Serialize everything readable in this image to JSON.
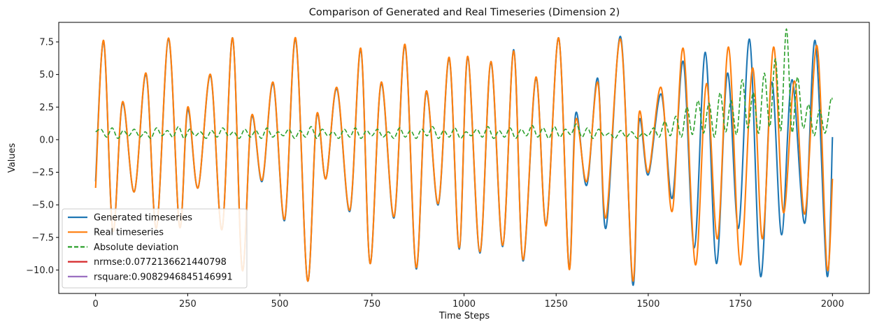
{
  "chart_data": {
    "type": "line",
    "title": "Comparison of Generated and Real Timeseries (Dimension 2)",
    "xlabel": "Time Steps",
    "ylabel": "Values",
    "xlim": [
      -100,
      2100
    ],
    "ylim": [
      -11.8,
      9.0
    ],
    "xticks": [
      0,
      250,
      500,
      750,
      1000,
      1250,
      1500,
      1750,
      2000
    ],
    "yticks": [
      -10.0,
      -7.5,
      -5.0,
      -2.5,
      0.0,
      2.5,
      5.0,
      7.5
    ],
    "xtick_labels": [
      "0",
      "250",
      "500",
      "750",
      "1000",
      "1250",
      "1500",
      "1750",
      "2000"
    ],
    "ytick_labels": [
      "−10.0",
      "−7.5",
      "−5.0",
      "−2.5",
      "0.0",
      "2.5",
      "5.0",
      "7.5"
    ],
    "grid": false,
    "legend_position": "lower-left",
    "series": [
      {
        "name": "Generated timeseries",
        "color": "#1f77b4",
        "style": "solid",
        "x": [
          0,
          22,
          47,
          73,
          105,
          137,
          165,
          198,
          228,
          250,
          278,
          312,
          343,
          372,
          398,
          423,
          452,
          482,
          513,
          543,
          575,
          600,
          625,
          655,
          690,
          720,
          745,
          775,
          810,
          840,
          870,
          897,
          930,
          960,
          987,
          1010,
          1043,
          1073,
          1105,
          1135,
          1160,
          1195,
          1223,
          1257,
          1285,
          1303,
          1333,
          1363,
          1385,
          1425,
          1458,
          1475,
          1500,
          1535,
          1565,
          1595,
          1625,
          1655,
          1685,
          1715,
          1745,
          1775,
          1805,
          1835,
          1862,
          1890,
          1925,
          1953,
          1985,
          2000
        ],
        "y": [
          -3.2,
          7.5,
          -7.0,
          2.8,
          -4.0,
          5.0,
          -6.8,
          7.7,
          -6.7,
          2.3,
          -3.7,
          4.9,
          -6.9,
          7.8,
          -10.0,
          1.7,
          -3.2,
          4.3,
          -6.2,
          7.7,
          -10.8,
          1.8,
          -3.0,
          3.9,
          -5.5,
          6.9,
          -9.5,
          4.3,
          -6.0,
          7.2,
          -9.9,
          3.6,
          -5.0,
          6.2,
          -8.4,
          6.3,
          -8.7,
          5.9,
          -8.2,
          6.9,
          -9.3,
          4.7,
          -6.5,
          7.8,
          -9.8,
          2.0,
          -3.5,
          4.7,
          -6.8,
          7.9,
          -11.1,
          1.4,
          -2.7,
          3.5,
          -4.5,
          6.0,
          -8.3,
          6.7,
          -9.5,
          5.1,
          -6.8,
          7.7,
          -10.5,
          4.4,
          -7.3,
          4.6,
          -6.4,
          7.6,
          -10.4,
          0.2
        ]
      },
      {
        "name": "Real timeseries",
        "color": "#ff7f0e",
        "style": "solid",
        "x": [
          0,
          22,
          47,
          73,
          105,
          137,
          165,
          198,
          228,
          250,
          278,
          312,
          343,
          372,
          398,
          423,
          452,
          482,
          513,
          543,
          575,
          600,
          625,
          655,
          690,
          720,
          745,
          775,
          810,
          840,
          870,
          897,
          930,
          960,
          987,
          1010,
          1043,
          1073,
          1105,
          1135,
          1160,
          1195,
          1223,
          1257,
          1285,
          1303,
          1333,
          1363,
          1385,
          1425,
          1458,
          1475,
          1500,
          1535,
          1565,
          1595,
          1628,
          1658,
          1688,
          1718,
          1750,
          1783,
          1810,
          1840,
          1867,
          1897,
          1925,
          1958,
          1985,
          2000
        ],
        "y": [
          -3.7,
          7.6,
          -7.0,
          2.9,
          -4.0,
          5.1,
          -6.8,
          7.8,
          -6.7,
          2.5,
          -3.7,
          5.0,
          -6.9,
          7.8,
          -10.0,
          1.8,
          -3.1,
          4.4,
          -6.1,
          7.8,
          -10.8,
          1.9,
          -3.0,
          4.0,
          -5.4,
          7.0,
          -9.5,
          4.4,
          -5.9,
          7.3,
          -9.8,
          3.7,
          -4.9,
          6.3,
          -8.3,
          6.4,
          -8.6,
          6.0,
          -8.1,
          6.8,
          -9.2,
          4.8,
          -6.6,
          7.8,
          -9.9,
          1.5,
          -3.2,
          4.4,
          -6.0,
          7.7,
          -10.8,
          2.0,
          -2.5,
          4.0,
          -5.5,
          7.0,
          -9.6,
          4.3,
          -7.6,
          7.1,
          -9.6,
          5.5,
          -7.6,
          7.1,
          -5.6,
          4.5,
          -5.7,
          7.2,
          -9.8,
          -3.0
        ]
      },
      {
        "name": "Absolute deviation",
        "color": "#2ca02c",
        "style": "dashed",
        "x": [
          0,
          15,
          30,
          45,
          60,
          75,
          90,
          105,
          120,
          135,
          150,
          165,
          180,
          195,
          210,
          225,
          240,
          255,
          270,
          285,
          300,
          315,
          330,
          345,
          360,
          375,
          390,
          405,
          420,
          435,
          450,
          465,
          480,
          495,
          510,
          525,
          540,
          555,
          570,
          585,
          600,
          615,
          630,
          645,
          660,
          675,
          690,
          705,
          720,
          735,
          750,
          765,
          780,
          795,
          810,
          825,
          840,
          855,
          870,
          885,
          900,
          915,
          930,
          945,
          960,
          975,
          990,
          1005,
          1020,
          1035,
          1050,
          1065,
          1080,
          1095,
          1110,
          1125,
          1140,
          1155,
          1170,
          1185,
          1200,
          1215,
          1230,
          1245,
          1260,
          1275,
          1290,
          1305,
          1320,
          1335,
          1350,
          1365,
          1380,
          1395,
          1410,
          1425,
          1440,
          1455,
          1470,
          1485,
          1500,
          1515,
          1530,
          1545,
          1560,
          1575,
          1590,
          1605,
          1620,
          1635,
          1650,
          1665,
          1680,
          1695,
          1710,
          1725,
          1740,
          1755,
          1770,
          1785,
          1800,
          1815,
          1830,
          1845,
          1860,
          1875,
          1890,
          1905,
          1920,
          1935,
          1950,
          1965,
          1980,
          1995,
          2000
        ],
        "y": [
          0.6,
          0.8,
          0.2,
          0.9,
          0.1,
          0.7,
          0.3,
          0.8,
          0.2,
          0.6,
          0.1,
          0.9,
          0.3,
          0.7,
          0.2,
          1.0,
          0.1,
          0.8,
          0.3,
          0.6,
          0.1,
          0.7,
          0.2,
          0.9,
          0.3,
          0.6,
          0.1,
          0.8,
          0.2,
          0.7,
          0.1,
          0.9,
          0.2,
          0.6,
          0.3,
          0.8,
          0.1,
          0.7,
          0.2,
          1.0,
          0.1,
          0.8,
          0.3,
          0.6,
          0.1,
          0.8,
          0.2,
          0.9,
          0.1,
          0.7,
          0.3,
          0.8,
          0.2,
          0.6,
          0.1,
          0.9,
          0.2,
          0.7,
          0.1,
          0.8,
          0.3,
          1.0,
          0.1,
          0.7,
          0.2,
          0.9,
          0.1,
          0.6,
          0.3,
          0.8,
          0.2,
          1.0,
          0.1,
          0.7,
          0.2,
          0.9,
          0.1,
          0.8,
          0.3,
          1.1,
          0.2,
          0.9,
          0.1,
          1.0,
          0.2,
          0.8,
          0.4,
          1.2,
          0.2,
          0.9,
          0.1,
          0.8,
          0.3,
          0.5,
          0.1,
          0.7,
          0.2,
          0.6,
          0.1,
          0.5,
          0.3,
          0.9,
          0.2,
          1.4,
          0.3,
          1.8,
          0.2,
          2.5,
          0.4,
          3.0,
          0.5,
          2.8,
          0.2,
          3.6,
          0.6,
          3.0,
          0.4,
          4.6,
          0.9,
          3.6,
          0.5,
          5.1,
          1.0,
          6.2,
          0.7,
          8.5,
          0.6,
          4.8,
          0.9,
          2.7,
          0.3,
          2.3,
          0.5,
          3.0,
          3.1
        ]
      },
      {
        "name": "nrmse:0.0772136621440798",
        "color": "#d62728",
        "style": "solid",
        "x": [],
        "y": []
      },
      {
        "name": "rsquare:0.9082946845146991",
        "color": "#9467bd",
        "style": "solid",
        "x": [],
        "y": []
      }
    ]
  }
}
